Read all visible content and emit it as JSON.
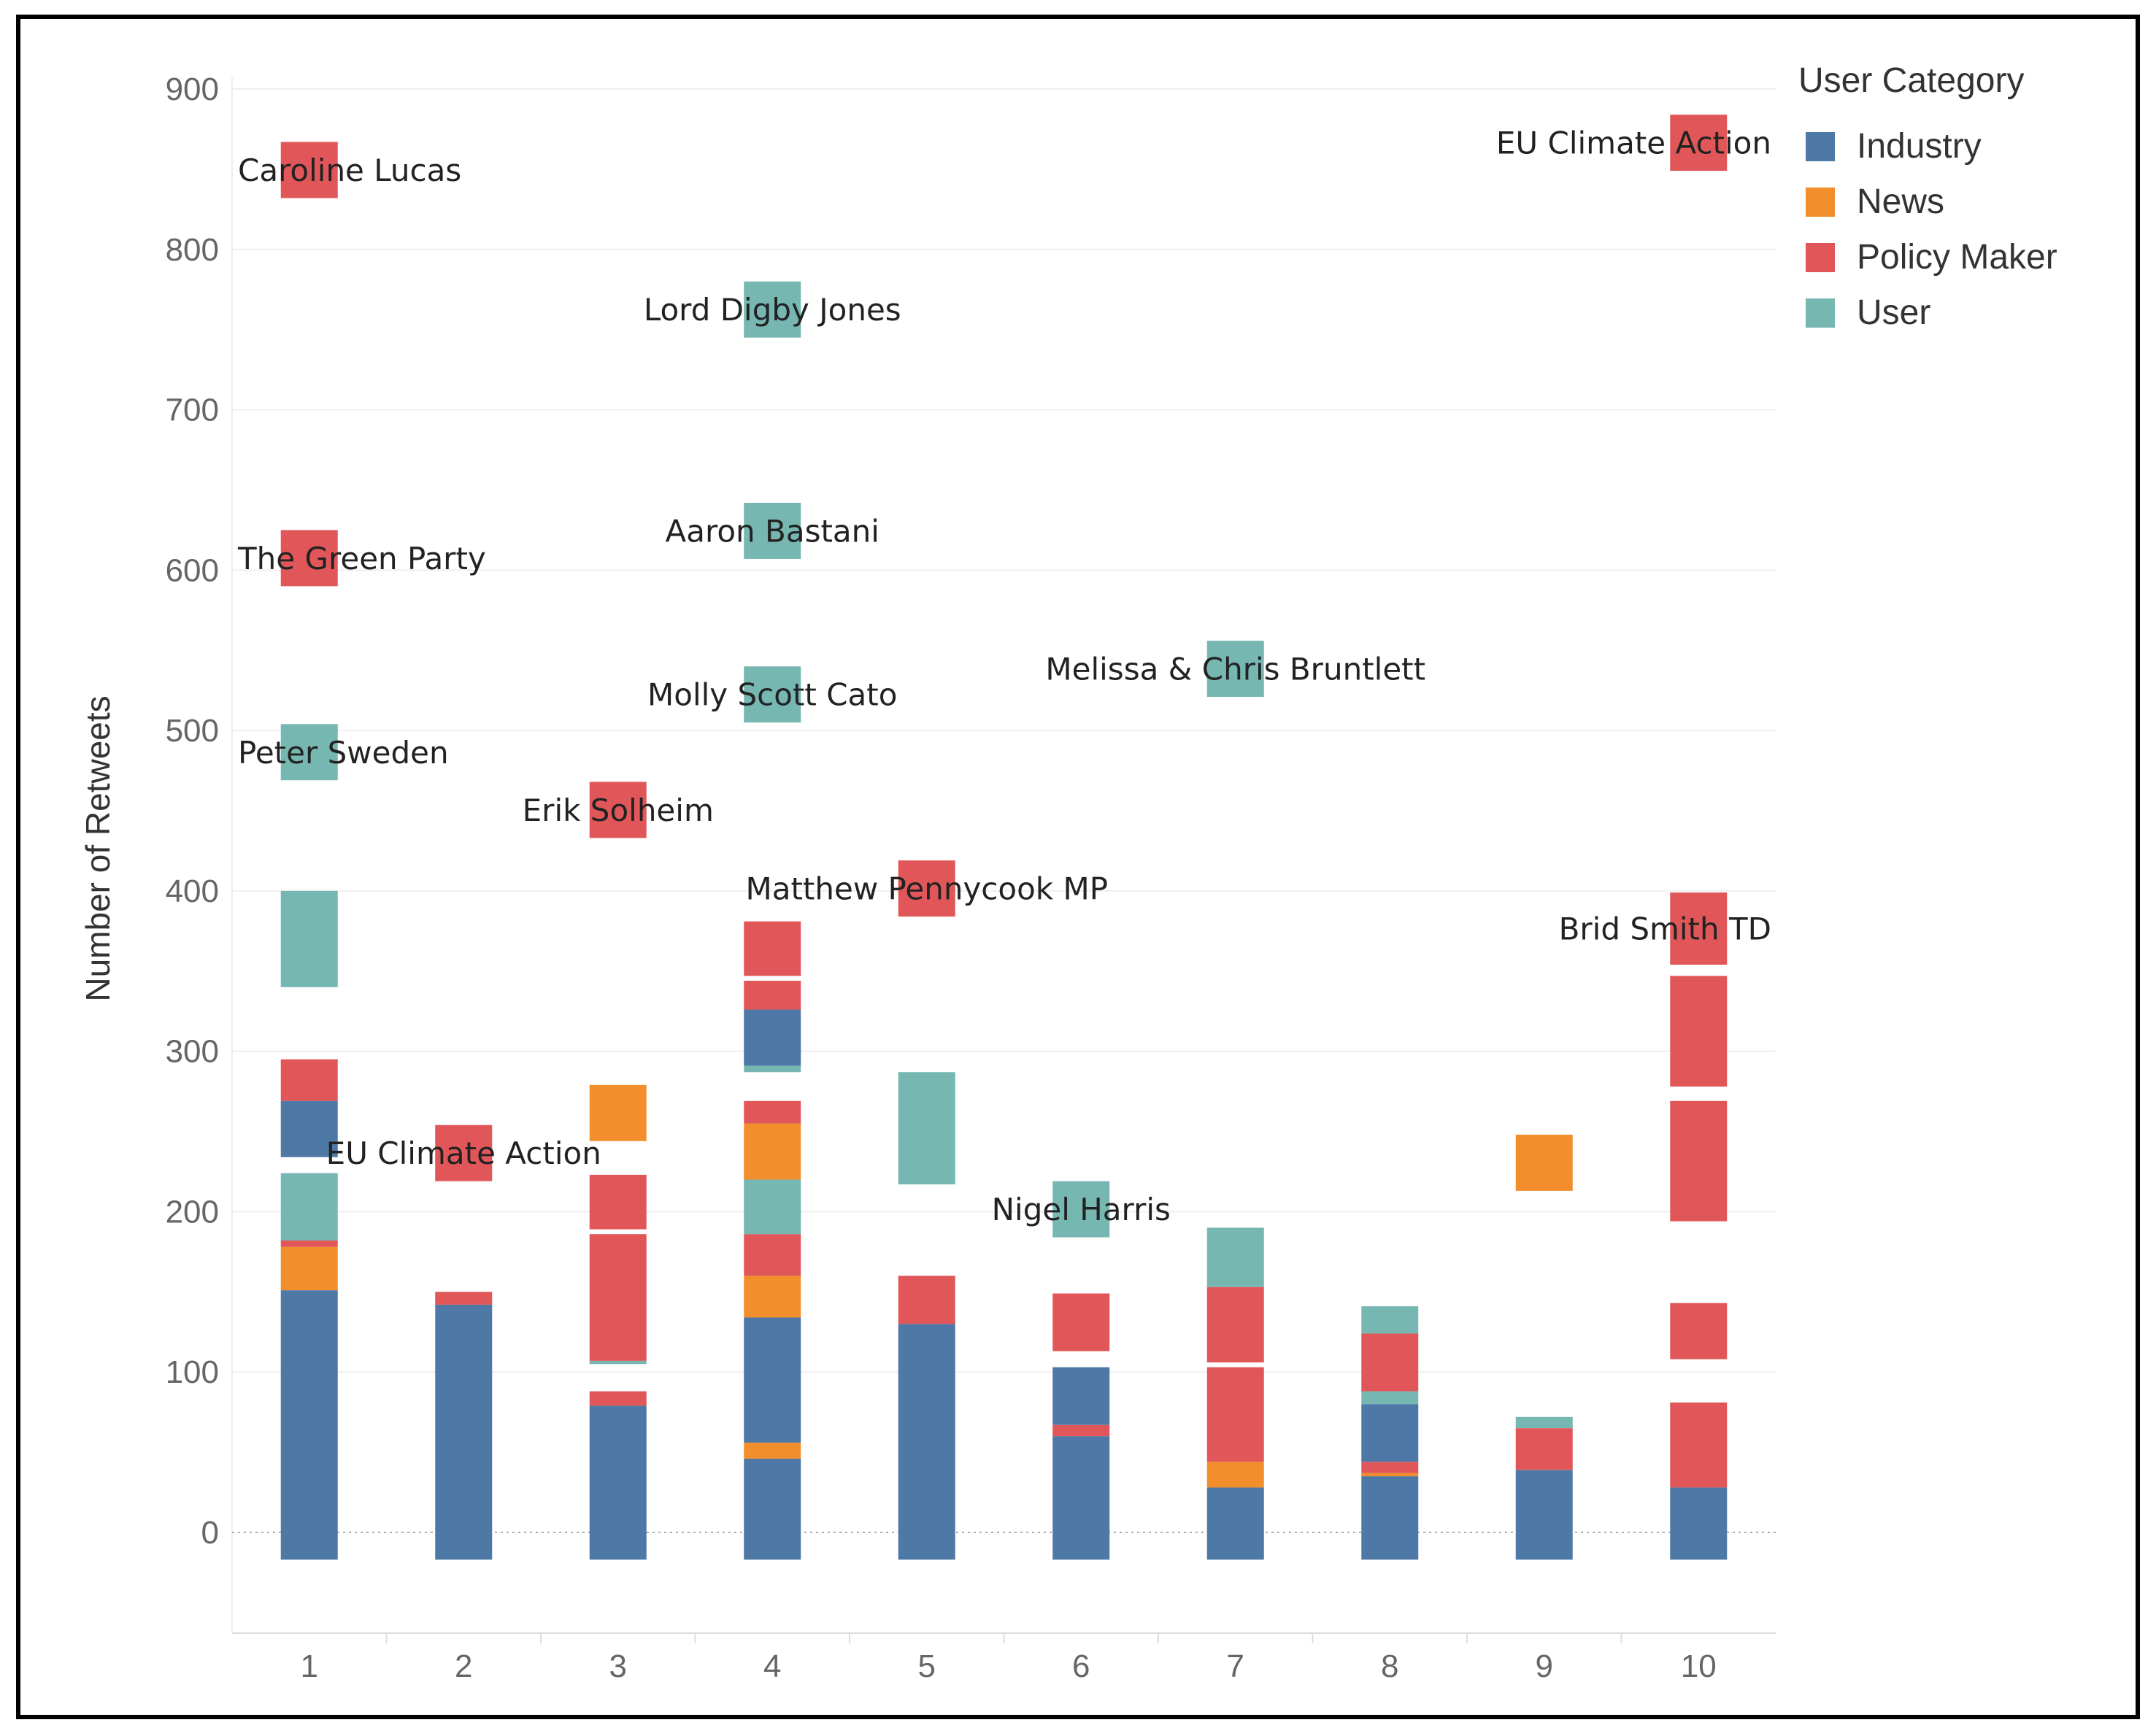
{
  "chart_data": {
    "type": "bar",
    "ylabel": "Number of Retweets",
    "xlabel": "",
    "ylim": [
      -60,
      920
    ],
    "yticks": [
      0,
      100,
      200,
      300,
      400,
      500,
      600,
      700,
      800,
      900
    ],
    "categories": [
      "1",
      "2",
      "3",
      "4",
      "5",
      "6",
      "7",
      "8",
      "9",
      "10"
    ],
    "legend": {
      "title": "User Category",
      "position": "top-right",
      "entries": [
        {
          "name": "Industry",
          "color": "#4E79A7"
        },
        {
          "name": "News",
          "color": "#F28E2B"
        },
        {
          "name": "Policy Maker",
          "color": "#E15759"
        },
        {
          "name": "User",
          "color": "#76B7B2"
        }
      ]
    },
    "segments": [
      {
        "x": "1",
        "category": "Industry",
        "from": -17,
        "to": 151
      },
      {
        "x": "1",
        "category": "News",
        "from": 151,
        "to": 178
      },
      {
        "x": "1",
        "category": "Policy Maker",
        "from": 178,
        "to": 182
      },
      {
        "x": "1",
        "category": "User",
        "from": 182,
        "to": 224
      },
      {
        "x": "1",
        "category": "Industry",
        "from": 234,
        "to": 269
      },
      {
        "x": "1",
        "category": "Policy Maker",
        "from": 269,
        "to": 295
      },
      {
        "x": "1",
        "category": "User",
        "from": 340,
        "to": 400
      },
      {
        "x": "1",
        "category": "User",
        "from": 469,
        "to": 504,
        "label": "Peter Sweden"
      },
      {
        "x": "1",
        "category": "Policy Maker",
        "from": 590,
        "to": 625,
        "label": "The Green Party"
      },
      {
        "x": "1",
        "category": "Policy Maker",
        "from": 832,
        "to": 867,
        "label": "Caroline Lucas"
      },
      {
        "x": "2",
        "category": "Industry",
        "from": -17,
        "to": 142
      },
      {
        "x": "2",
        "category": "Policy Maker",
        "from": 142,
        "to": 150
      },
      {
        "x": "2",
        "category": "Policy Maker",
        "from": 219,
        "to": 254,
        "label": "EU Climate Action"
      },
      {
        "x": "3",
        "category": "Industry",
        "from": -17,
        "to": 79
      },
      {
        "x": "3",
        "category": "Policy Maker",
        "from": 79,
        "to": 88
      },
      {
        "x": "3",
        "category": "User",
        "from": 105,
        "to": 107
      },
      {
        "x": "3",
        "category": "Policy Maker",
        "from": 107,
        "to": 186
      },
      {
        "x": "3",
        "category": "Policy Maker",
        "from": 189,
        "to": 223
      },
      {
        "x": "3",
        "category": "News",
        "from": 244,
        "to": 279
      },
      {
        "x": "3",
        "category": "Policy Maker",
        "from": 433,
        "to": 468,
        "label": "Erik Solheim"
      },
      {
        "x": "4",
        "category": "Industry",
        "from": -17,
        "to": 46
      },
      {
        "x": "4",
        "category": "News",
        "from": 46,
        "to": 56
      },
      {
        "x": "4",
        "category": "Industry",
        "from": 56,
        "to": 134
      },
      {
        "x": "4",
        "category": "News",
        "from": 134,
        "to": 160
      },
      {
        "x": "4",
        "category": "Policy Maker",
        "from": 160,
        "to": 186
      },
      {
        "x": "4",
        "category": "User",
        "from": 186,
        "to": 220
      },
      {
        "x": "4",
        "category": "News",
        "from": 220,
        "to": 255
      },
      {
        "x": "4",
        "category": "Policy Maker",
        "from": 255,
        "to": 269
      },
      {
        "x": "4",
        "category": "User",
        "from": 287,
        "to": 291
      },
      {
        "x": "4",
        "category": "Industry",
        "from": 291,
        "to": 326
      },
      {
        "x": "4",
        "category": "Policy Maker",
        "from": 326,
        "to": 344
      },
      {
        "x": "4",
        "category": "Policy Maker",
        "from": 347,
        "to": 381
      },
      {
        "x": "4",
        "category": "User",
        "from": 505,
        "to": 540,
        "label": "Molly Scott Cato"
      },
      {
        "x": "4",
        "category": "User",
        "from": 607,
        "to": 642,
        "label": "Aaron Bastani"
      },
      {
        "x": "4",
        "category": "User",
        "from": 745,
        "to": 780,
        "label": "Lord Digby Jones"
      },
      {
        "x": "5",
        "category": "Industry",
        "from": -17,
        "to": 130
      },
      {
        "x": "5",
        "category": "Policy Maker",
        "from": 130,
        "to": 160
      },
      {
        "x": "5",
        "category": "User",
        "from": 217,
        "to": 287
      },
      {
        "x": "5",
        "category": "Policy Maker",
        "from": 384,
        "to": 419,
        "label": "Matthew Pennycook MP"
      },
      {
        "x": "6",
        "category": "Industry",
        "from": -17,
        "to": 60
      },
      {
        "x": "6",
        "category": "Policy Maker",
        "from": 60,
        "to": 67
      },
      {
        "x": "6",
        "category": "Industry",
        "from": 67,
        "to": 103
      },
      {
        "x": "6",
        "category": "Policy Maker",
        "from": 113,
        "to": 149
      },
      {
        "x": "6",
        "category": "User",
        "from": 184,
        "to": 219,
        "label": "Nigel Harris"
      },
      {
        "x": "7",
        "category": "Industry",
        "from": -17,
        "to": 28
      },
      {
        "x": "7",
        "category": "News",
        "from": 28,
        "to": 44
      },
      {
        "x": "7",
        "category": "Policy Maker",
        "from": 44,
        "to": 103
      },
      {
        "x": "7",
        "category": "Policy Maker",
        "from": 106,
        "to": 153
      },
      {
        "x": "7",
        "category": "User",
        "from": 153,
        "to": 190
      },
      {
        "x": "7",
        "category": "User",
        "from": 521,
        "to": 556,
        "label": "Melissa & Chris Bruntlett"
      },
      {
        "x": "8",
        "category": "Industry",
        "from": -17,
        "to": 35
      },
      {
        "x": "8",
        "category": "News",
        "from": 35,
        "to": 37
      },
      {
        "x": "8",
        "category": "Policy Maker",
        "from": 37,
        "to": 44
      },
      {
        "x": "8",
        "category": "Industry",
        "from": 44,
        "to": 80
      },
      {
        "x": "8",
        "category": "User",
        "from": 80,
        "to": 88
      },
      {
        "x": "8",
        "category": "Policy Maker",
        "from": 88,
        "to": 124
      },
      {
        "x": "8",
        "category": "User",
        "from": 124,
        "to": 141
      },
      {
        "x": "9",
        "category": "Industry",
        "from": -17,
        "to": 39
      },
      {
        "x": "9",
        "category": "Policy Maker",
        "from": 39,
        "to": 65
      },
      {
        "x": "9",
        "category": "User",
        "from": 65,
        "to": 72
      },
      {
        "x": "9",
        "category": "News",
        "from": 213,
        "to": 248
      },
      {
        "x": "10",
        "category": "Industry",
        "from": -17,
        "to": 28
      },
      {
        "x": "10",
        "category": "Policy Maker",
        "from": 28,
        "to": 81
      },
      {
        "x": "10",
        "category": "Policy Maker",
        "from": 108,
        "to": 143
      },
      {
        "x": "10",
        "category": "Policy Maker",
        "from": 194,
        "to": 269
      },
      {
        "x": "10",
        "category": "Policy Maker",
        "from": 278,
        "to": 347
      },
      {
        "x": "10",
        "category": "Policy Maker",
        "from": 354,
        "to": 399,
        "label": "Brid Smith TD"
      },
      {
        "x": "10",
        "category": "Policy Maker",
        "from": 849,
        "to": 884,
        "label": "EU Climate Action"
      }
    ]
  }
}
